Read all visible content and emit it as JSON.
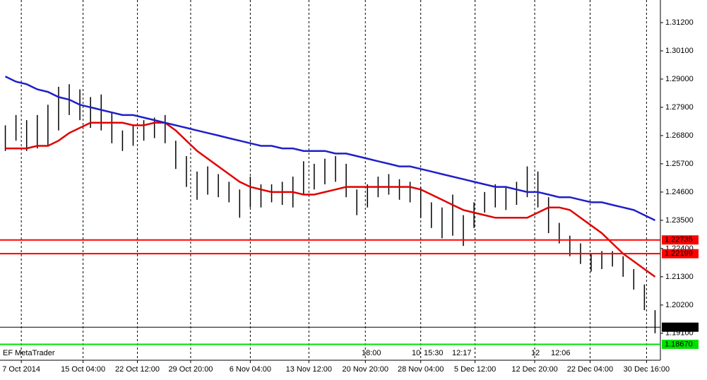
{
  "chart_data": {
    "type": "stock",
    "xlim": [
      -0.5,
      61.5
    ],
    "xticks": [
      {
        "value": 1.5,
        "label": "7 Oct 2014"
      },
      {
        "value": 7.3,
        "label": "15 Oct 04:00"
      },
      {
        "value": 12.4,
        "label": "22 Oct 12:00"
      },
      {
        "value": 17.4,
        "label": "29 Oct 20:00"
      },
      {
        "value": 23.0,
        "label": "6 Nov 04:00"
      },
      {
        "value": 28.5,
        "label": "13 Nov 12:00"
      },
      {
        "value": 33.8,
        "label": "20 Nov 20:00"
      },
      {
        "value": 39.0,
        "label": "28 Nov 04:00"
      },
      {
        "value": 44.1,
        "label": "5 Dec 12:00"
      },
      {
        "value": 49.7,
        "label": "12 Dec 20:00"
      },
      {
        "value": 54.9,
        "label": "22 Dec 04:00"
      },
      {
        "value": 60.2,
        "label": "30 Dec 16:00"
      }
    ],
    "ylim": [
      1.1805,
      1.3208
    ],
    "yticks": [
      {
        "value": 1.312,
        "label": "1.31200"
      },
      {
        "value": 1.301,
        "label": "1.30100"
      },
      {
        "value": 1.29,
        "label": "1.29000"
      },
      {
        "value": 1.279,
        "label": "1.27900"
      },
      {
        "value": 1.268,
        "label": "1.26800"
      },
      {
        "value": 1.257,
        "label": "1.25700"
      },
      {
        "value": 1.246,
        "label": "1.24600"
      },
      {
        "value": 1.235,
        "label": "1.23500"
      },
      {
        "value": 1.224,
        "label": "1.22400"
      },
      {
        "value": 1.213,
        "label": "1.21300"
      },
      {
        "value": 1.202,
        "label": "1.20200"
      },
      {
        "value": 1.191,
        "label": "1.19100"
      }
    ],
    "grid": true,
    "bars": {
      "color": "#000000",
      "high": [
        1.272,
        1.276,
        1.274,
        1.276,
        1.28,
        1.287,
        1.288,
        1.286,
        1.283,
        1.284,
        1.277,
        1.27,
        1.272,
        1.274,
        1.275,
        1.276,
        1.266,
        1.26,
        1.254,
        1.256,
        1.253,
        1.25,
        1.247,
        1.252,
        1.249,
        1.249,
        1.25,
        1.252,
        1.258,
        1.257,
        1.259,
        1.26,
        1.257,
        1.247,
        1.249,
        1.252,
        1.253,
        1.251,
        1.25,
        1.248,
        1.242,
        1.24,
        1.245,
        1.237,
        1.242,
        1.246,
        1.249,
        1.248,
        1.25,
        1.256,
        1.254,
        1.244,
        1.234,
        1.229,
        1.226,
        1.222,
        1.223,
        1.223,
        1.221,
        1.216,
        1.21,
        1.2
      ],
      "low": [
        1.262,
        1.266,
        1.262,
        1.263,
        1.264,
        1.27,
        1.276,
        1.274,
        1.271,
        1.27,
        1.265,
        1.262,
        1.264,
        1.266,
        1.267,
        1.265,
        1.255,
        1.248,
        1.243,
        1.245,
        1.244,
        1.242,
        1.236,
        1.24,
        1.24,
        1.242,
        1.241,
        1.24,
        1.245,
        1.247,
        1.249,
        1.25,
        1.244,
        1.237,
        1.24,
        1.244,
        1.245,
        1.243,
        1.242,
        1.236,
        1.232,
        1.228,
        1.229,
        1.225,
        1.232,
        1.238,
        1.24,
        1.239,
        1.241,
        1.244,
        1.24,
        1.23,
        1.226,
        1.221,
        1.218,
        1.215,
        1.216,
        1.217,
        1.213,
        1.208,
        1.2,
        1.191
      ]
    },
    "series": [
      {
        "color": "#e00000",
        "values": [
          1.263,
          1.263,
          1.263,
          1.264,
          1.264,
          1.266,
          1.269,
          1.271,
          1.273,
          1.273,
          1.273,
          1.273,
          1.272,
          1.272,
          1.273,
          1.273,
          1.27,
          1.266,
          1.262,
          1.259,
          1.256,
          1.253,
          1.25,
          1.248,
          1.247,
          1.246,
          1.246,
          1.246,
          1.245,
          1.245,
          1.246,
          1.247,
          1.248,
          1.248,
          1.248,
          1.248,
          1.248,
          1.248,
          1.248,
          1.247,
          1.245,
          1.243,
          1.241,
          1.239,
          1.238,
          1.237,
          1.236,
          1.236,
          1.236,
          1.236,
          1.238,
          1.24,
          1.24,
          1.239,
          1.236,
          1.233,
          1.23,
          1.226,
          1.222,
          1.219,
          1.216,
          1.213
        ]
      },
      {
        "color": "#1f1fc8",
        "values": [
          1.291,
          1.289,
          1.288,
          1.286,
          1.285,
          1.283,
          1.282,
          1.28,
          1.279,
          1.278,
          1.277,
          1.276,
          1.276,
          1.275,
          1.274,
          1.273,
          1.272,
          1.271,
          1.27,
          1.269,
          1.268,
          1.267,
          1.266,
          1.265,
          1.264,
          1.264,
          1.263,
          1.263,
          1.262,
          1.262,
          1.262,
          1.261,
          1.261,
          1.26,
          1.259,
          1.258,
          1.257,
          1.256,
          1.256,
          1.255,
          1.254,
          1.253,
          1.252,
          1.251,
          1.25,
          1.249,
          1.248,
          1.248,
          1.247,
          1.246,
          1.246,
          1.245,
          1.244,
          1.244,
          1.243,
          1.242,
          1.242,
          1.241,
          1.24,
          1.239,
          1.237,
          1.235
        ]
      }
    ],
    "levels": {
      "values": [
        1.22735,
        1.22199,
        1.19337,
        1.1867
      ],
      "value_labels": [
        "1.22735",
        "1.22199",
        "1.19337",
        "1.18670"
      ],
      "colors": [
        "#ff0000",
        "#ff0000",
        "#000000",
        "#00e000"
      ]
    },
    "annotations": [
      "EF MetaTrader",
      "18:00",
      "10",
      "15:30",
      "12:17",
      "12",
      "12:06"
    ]
  }
}
